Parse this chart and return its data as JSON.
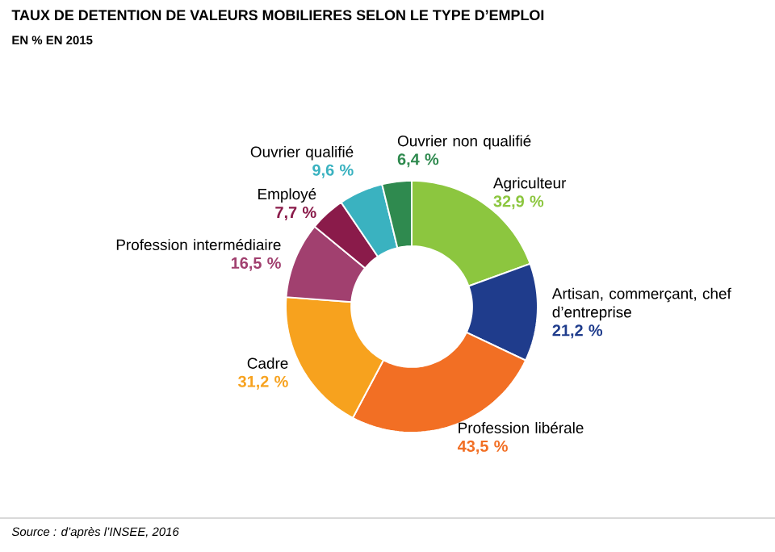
{
  "chart_data": {
    "type": "donut",
    "title": "TAUX DE DETENTION DE VALEURS MOBILIERES SELON LE TYPE D’EMPLOI",
    "subtitle": "EN % EN 2015",
    "categories": [
      "Agriculteur",
      "Artisan, commerçant, chef d’entreprise",
      "Profession libérale",
      "Cadre",
      "Profession intermédiaire",
      "Employé",
      "Ouvrier qualifié",
      "Ouvrier non qualifié"
    ],
    "values": [
      32.9,
      21.2,
      43.5,
      31.2,
      16.5,
      7.7,
      9.6,
      6.4
    ],
    "value_labels": [
      "32,9 %",
      "21,2 %",
      "43,5 %",
      "31,2 %",
      "16,5 %",
      "7,7 %",
      "9,6 %",
      "6,4 %"
    ],
    "colors": [
      "#8cc63f",
      "#1f3c8c",
      "#f26f24",
      "#f7a21e",
      "#a1406f",
      "#8a1b4a",
      "#3ab2c0",
      "#2f8a4f"
    ],
    "annotations": [
      "Source : d’après l’INSEE, 2016"
    ]
  }
}
